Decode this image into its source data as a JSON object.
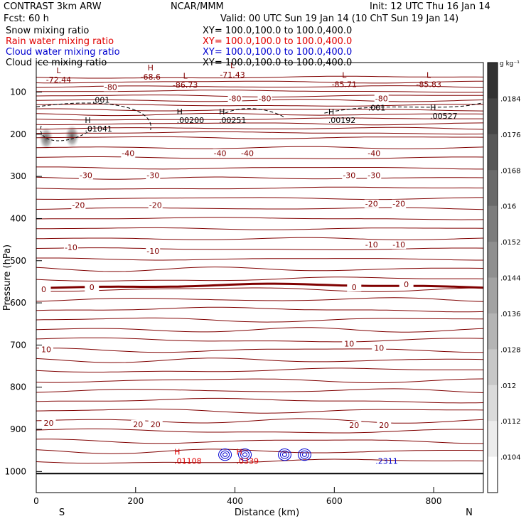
{
  "header": {
    "title_left": "CONTRAST  3km ARW",
    "title_center": "NCAR/MMM",
    "init": "Init: 12 UTC Thu 16 Jan 14",
    "fcst": "Fcst:   60 h",
    "valid": "Valid: 00 UTC Sun 19 Jan 14 (10 ChT Sun 19 Jan 14)",
    "fields": [
      {
        "name": "Snow mixing ratio",
        "xy": "XY= 100.0,100.0 to 100.0,400.0",
        "color": "#000000"
      },
      {
        "name": "Rain water mixing ratio",
        "xy": "XY= 100.0,100.0 to 100.0,400.0",
        "color": "#e00000"
      },
      {
        "name": "Cloud water mixing ratio",
        "xy": "XY= 100.0,100.0 to 100.0,400.0",
        "color": "#0000d0"
      },
      {
        "name": "Cloud ice mixing ratio",
        "xy": "XY= 100.0,100.0 to 100.0,400.0",
        "color": "#000000"
      }
    ]
  },
  "chart_data": {
    "type": "contour",
    "xlabel": "Distance (km)",
    "ylabel": "Pressure (hPa)",
    "xlim": [
      0,
      900
    ],
    "ylim": [
      1050,
      30
    ],
    "x_ticks": [
      0,
      200,
      400,
      600,
      800
    ],
    "y_ticks": [
      100,
      200,
      300,
      400,
      500,
      600,
      700,
      800,
      900,
      1000
    ],
    "x_end_labels": {
      "left": "S",
      "right": "N"
    },
    "contour_color": "#800000",
    "temperature_contours": [
      {
        "value": -80,
        "labels": [
          {
            "x": 150,
            "p": 88
          },
          {
            "x": 400,
            "p": 115
          },
          {
            "x": 460,
            "p": 115
          },
          {
            "x": 695,
            "p": 115
          }
        ]
      },
      {
        "value": -40,
        "labels": [
          {
            "x": 185,
            "p": 245
          },
          {
            "x": 370,
            "p": 245
          },
          {
            "x": 425,
            "p": 245
          },
          {
            "x": 680,
            "p": 245
          }
        ]
      },
      {
        "value": -30,
        "labels": [
          {
            "x": 100,
            "p": 297
          },
          {
            "x": 235,
            "p": 297
          },
          {
            "x": 630,
            "p": 297
          },
          {
            "x": 680,
            "p": 297
          }
        ]
      },
      {
        "value": -20,
        "labels": [
          {
            "x": 85,
            "p": 368
          },
          {
            "x": 240,
            "p": 368
          },
          {
            "x": 675,
            "p": 365
          },
          {
            "x": 730,
            "p": 365
          }
        ]
      },
      {
        "value": -10,
        "labels": [
          {
            "x": 70,
            "p": 468
          },
          {
            "x": 235,
            "p": 477
          },
          {
            "x": 675,
            "p": 462
          },
          {
            "x": 730,
            "p": 462
          }
        ]
      },
      {
        "value": 0,
        "labels": [
          {
            "x": 15,
            "p": 568
          },
          {
            "x": 112,
            "p": 563
          },
          {
            "x": 640,
            "p": 563
          },
          {
            "x": 745,
            "p": 556
          }
        ]
      },
      {
        "value": 10,
        "labels": [
          {
            "x": 20,
            "p": 710
          },
          {
            "x": 630,
            "p": 697
          },
          {
            "x": 690,
            "p": 707
          }
        ]
      },
      {
        "value": 20,
        "labels": [
          {
            "x": 25,
            "p": 885
          },
          {
            "x": 205,
            "p": 888
          },
          {
            "x": 240,
            "p": 888
          },
          {
            "x": 640,
            "p": 890
          },
          {
            "x": 700,
            "p": 890
          }
        ]
      }
    ],
    "extrema": [
      {
        "kind": "L",
        "value": "-72.44",
        "x": 45,
        "p": 67
      },
      {
        "kind": "H",
        "value": "-68.6",
        "x": 230,
        "p": 60
      },
      {
        "kind": "L",
        "value": "-86.73",
        "x": 300,
        "p": 80
      },
      {
        "kind": "L",
        "value": "-71.43",
        "x": 395,
        "p": 55
      },
      {
        "kind": "L",
        "value": "-85.71",
        "x": 620,
        "p": 78
      },
      {
        "kind": "L",
        "value": "-85.83",
        "x": 790,
        "p": 78
      }
    ],
    "snow_labels": [
      {
        "kind": "",
        "value": ".001",
        "x": 130,
        "p": 117
      },
      {
        "kind": "H",
        "value": ".01041",
        "x": 115,
        "p": 185
      },
      {
        "kind": "H",
        "value": ".00200",
        "x": 300,
        "p": 165
      },
      {
        "kind": "H",
        "value": ".00251",
        "x": 385,
        "p": 165
      },
      {
        "kind": "",
        "value": ".001",
        "x": 685,
        "p": 135
      },
      {
        "kind": "H",
        "value": ".00192",
        "x": 605,
        "p": 165
      },
      {
        "kind": "H",
        "value": ".00527",
        "x": 810,
        "p": 155
      }
    ],
    "low_level_labels": [
      {
        "kind": "H",
        "value": ".01108",
        "x": 285,
        "p": 968,
        "color": "#e00000"
      },
      {
        "kind": "H",
        "value": ".0339",
        "x": 410,
        "p": 968,
        "color": "#e00000"
      },
      {
        "kind": "",
        "value": ".2311",
        "x": 690,
        "p": 968,
        "color": "#0000d0"
      }
    ],
    "colorbar": {
      "unit": "g kg⁻¹",
      "labels": [
        ".0184",
        ".0176",
        ".0168",
        ".016",
        ".0152",
        ".0144",
        ".0136",
        ".0128",
        ".012",
        ".0112",
        ".0104"
      ]
    }
  }
}
